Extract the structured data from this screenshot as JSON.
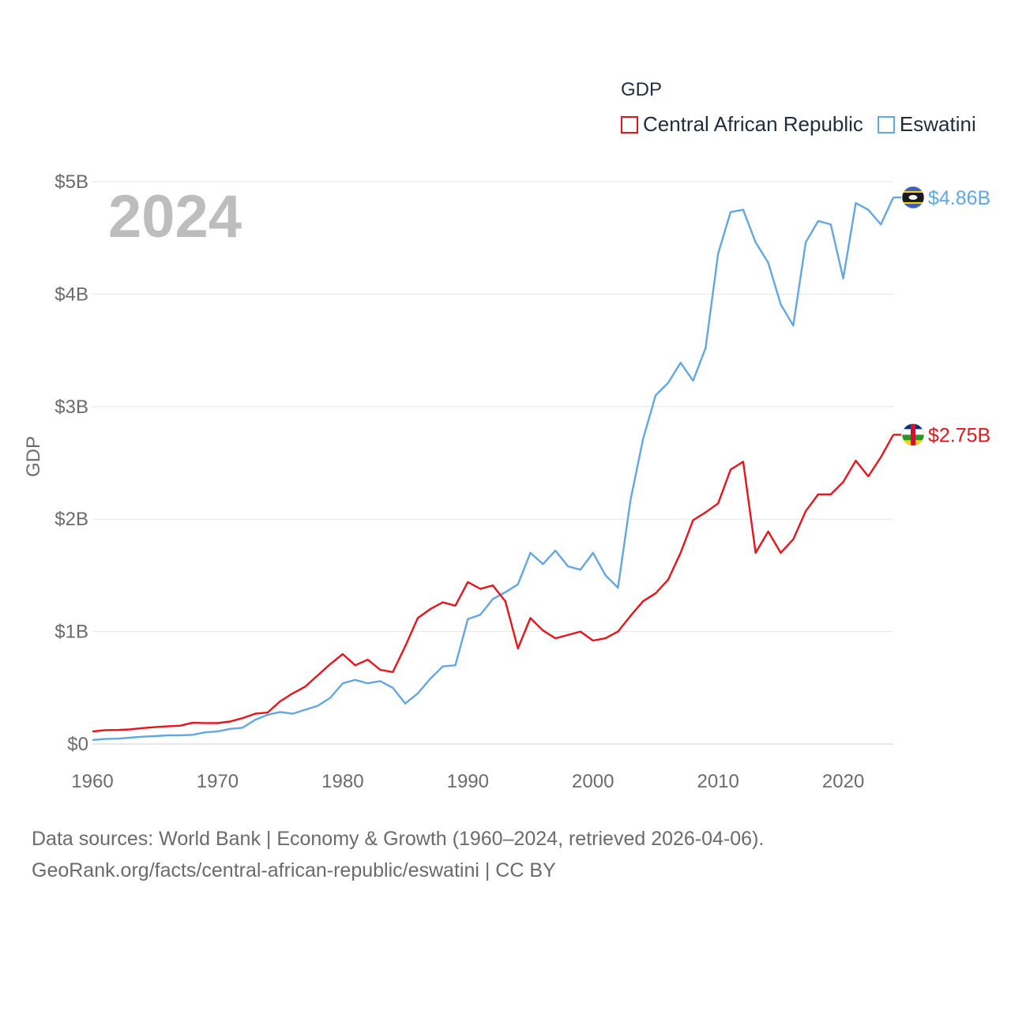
{
  "legend": {
    "title": "GDP",
    "items": [
      {
        "label": "Central African Republic",
        "color": "#e8141b"
      },
      {
        "label": "Eswatini",
        "color": "#62a7e4"
      }
    ]
  },
  "chart_data": {
    "type": "line",
    "title": "",
    "year_label": "2024",
    "xlabel": "",
    "ylabel": "GDP",
    "xlim": [
      1960,
      2024
    ],
    "ylim": [
      0,
      5000000000
    ],
    "x_ticks": [
      1960,
      1970,
      1980,
      1990,
      2000,
      2010,
      2020
    ],
    "y_ticks": [
      {
        "value": 0,
        "label": "$0"
      },
      {
        "value": 1000000000,
        "label": "$1B"
      },
      {
        "value": 2000000000,
        "label": "$2B"
      },
      {
        "value": 3000000000,
        "label": "$3B"
      },
      {
        "value": 4000000000,
        "label": "$4B"
      },
      {
        "value": 5000000000,
        "label": "$5B"
      }
    ],
    "grid": true,
    "legend_position": "top-right",
    "x": [
      1960,
      1961,
      1962,
      1963,
      1964,
      1965,
      1966,
      1967,
      1968,
      1969,
      1970,
      1971,
      1972,
      1973,
      1974,
      1975,
      1976,
      1977,
      1978,
      1979,
      1980,
      1981,
      1982,
      1983,
      1984,
      1985,
      1986,
      1987,
      1988,
      1989,
      1990,
      1991,
      1992,
      1993,
      1994,
      1995,
      1996,
      1997,
      1998,
      1999,
      2000,
      2001,
      2002,
      2003,
      2004,
      2005,
      2006,
      2007,
      2008,
      2009,
      2010,
      2011,
      2012,
      2013,
      2014,
      2015,
      2016,
      2017,
      2018,
      2019,
      2020,
      2021,
      2022,
      2023,
      2024
    ],
    "series": [
      {
        "name": "Central African Republic",
        "color": "#e8141b",
        "end_label": "$2.75B",
        "values": [
          0.112,
          0.123,
          0.125,
          0.13,
          0.142,
          0.15,
          0.157,
          0.163,
          0.189,
          0.187,
          0.186,
          0.2,
          0.23,
          0.27,
          0.28,
          0.38,
          0.45,
          0.51,
          0.61,
          0.71,
          0.8,
          0.7,
          0.75,
          0.66,
          0.64,
          0.87,
          1.12,
          1.2,
          1.26,
          1.23,
          1.44,
          1.38,
          1.41,
          1.27,
          0.85,
          1.12,
          1.01,
          0.94,
          0.97,
          1.0,
          0.92,
          0.94,
          1.0,
          1.14,
          1.27,
          1.34,
          1.46,
          1.7,
          1.99,
          2.06,
          2.14,
          2.44,
          2.51,
          1.7,
          1.89,
          1.7,
          1.82,
          2.07,
          2.22,
          2.22,
          2.33,
          2.52,
          2.38,
          2.55,
          2.75
        ]
      },
      {
        "name": "Eswatini",
        "color": "#62a7e4",
        "end_label": "$4.86B",
        "values": [
          0.036,
          0.045,
          0.048,
          0.056,
          0.065,
          0.07,
          0.077,
          0.077,
          0.082,
          0.104,
          0.112,
          0.135,
          0.145,
          0.215,
          0.26,
          0.285,
          0.27,
          0.305,
          0.34,
          0.41,
          0.54,
          0.57,
          0.54,
          0.56,
          0.5,
          0.36,
          0.45,
          0.58,
          0.69,
          0.7,
          1.11,
          1.15,
          1.29,
          1.35,
          1.42,
          1.7,
          1.6,
          1.72,
          1.58,
          1.55,
          1.7,
          1.5,
          1.39,
          2.17,
          2.71,
          3.1,
          3.21,
          3.39,
          3.23,
          3.52,
          4.36,
          4.73,
          4.75,
          4.46,
          4.28,
          3.91,
          3.72,
          4.46,
          4.65,
          4.62,
          4.14,
          4.81,
          4.75,
          4.62,
          4.86
        ]
      }
    ]
  },
  "footer": {
    "line1": "Data sources: World Bank | Economy & Growth (1960–2024, retrieved 2026-04-06).",
    "line2": "GeoRank.org/facts/central-african-republic/eswatini | CC BY"
  }
}
